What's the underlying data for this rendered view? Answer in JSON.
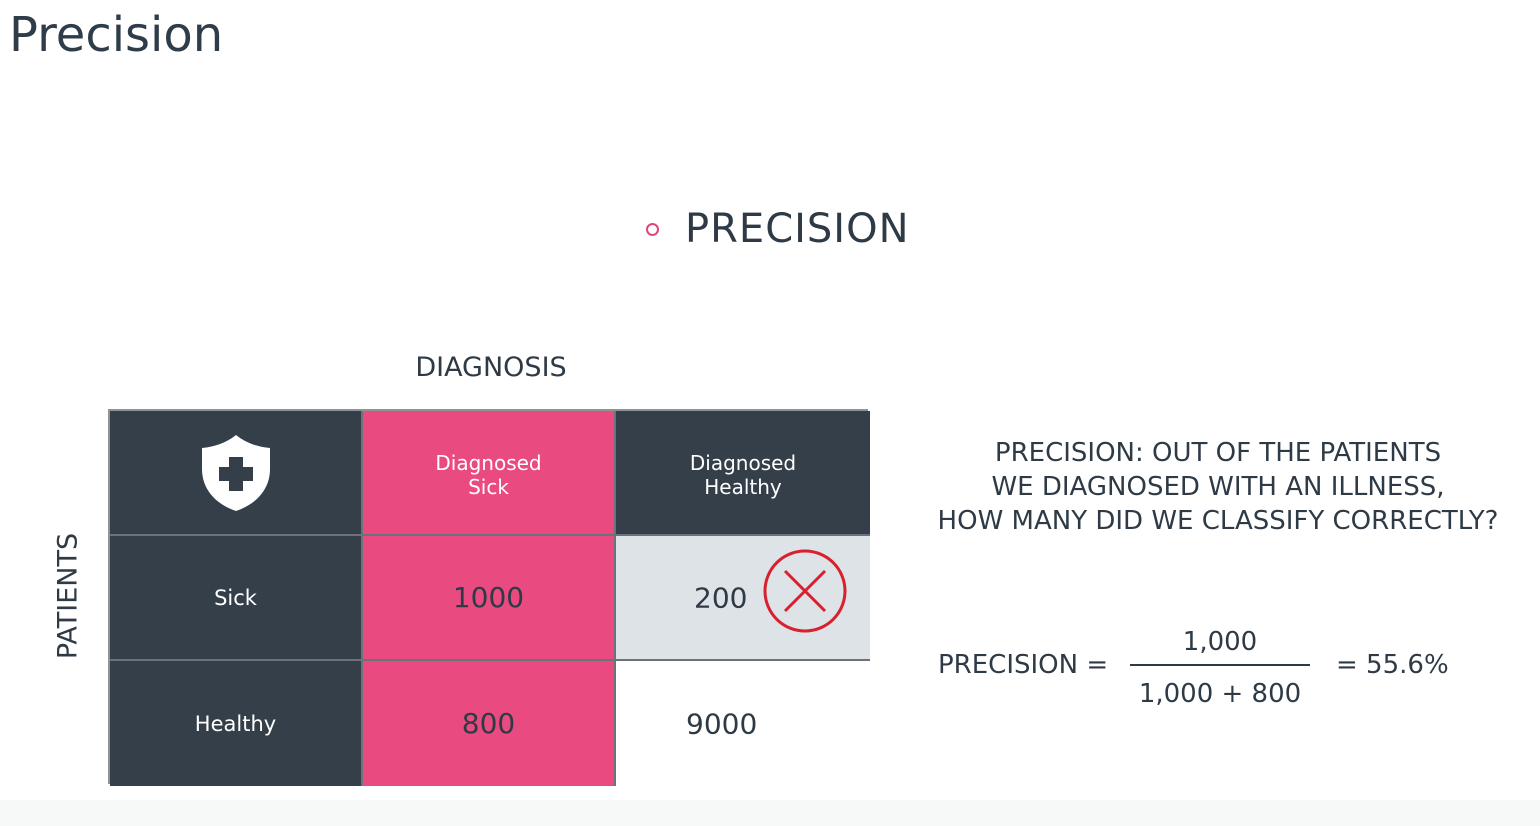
{
  "page": {
    "title": "Precision"
  },
  "slide": {
    "heading": "PRECISION",
    "diagnosis_label": "DIAGNOSIS",
    "patients_label": "PATIENTS",
    "matrix": {
      "corner_icon": "shield-cross-icon",
      "col_headers": [
        "Diagnosed\nSick",
        "Diagnosed\nHealthy"
      ],
      "rows": [
        {
          "label": "Sick",
          "values": [
            "1000",
            "200"
          ]
        },
        {
          "label": "Healthy",
          "values": [
            "800",
            "9000"
          ]
        }
      ],
      "marked_cell_icon": "x-circle-icon"
    },
    "description": {
      "line1": "PRECISION: OUT OF THE PATIENTS",
      "line2": "WE DIAGNOSED WITH AN ILLNESS,",
      "line3": "HOW MANY DID WE CLASSIFY CORRECTLY?"
    },
    "formula": {
      "lhs": "PRECISION =",
      "numerator": "1,000",
      "denominator": "1,000 + 800",
      "result": "= 55.6%"
    }
  },
  "colors": {
    "dark": "#343f49",
    "pink": "#e94b81",
    "grey": "#dde3e6",
    "red_mark": "#d9202f"
  }
}
